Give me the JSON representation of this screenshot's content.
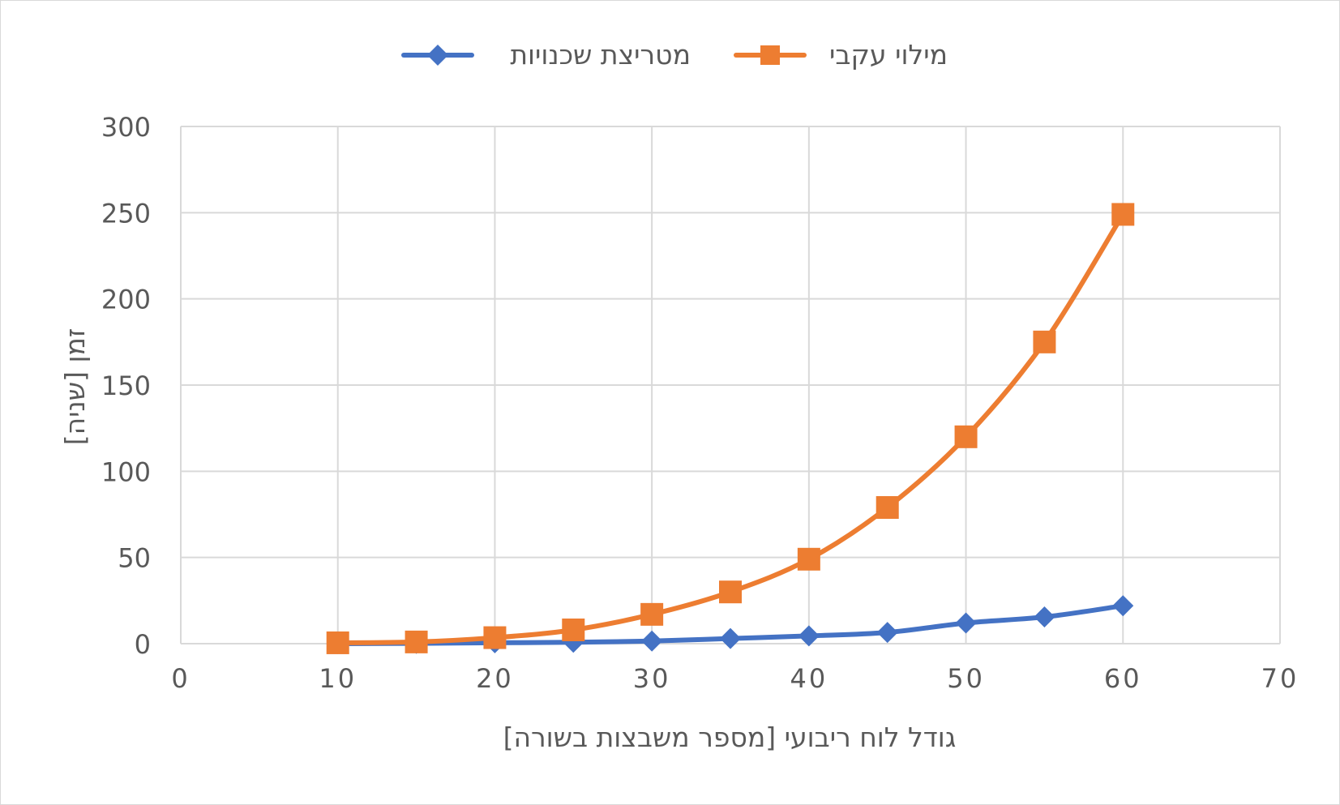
{
  "chart_data": {
    "type": "line",
    "title": "",
    "xlabel": "גודל לוח ריבועי [מספר משבצות בשורה]",
    "ylabel": "זמן [שניה]",
    "xlim": [
      0,
      70
    ],
    "ylim": [
      0,
      300
    ],
    "x_ticks": [
      0,
      10,
      20,
      30,
      40,
      50,
      60,
      70
    ],
    "y_ticks": [
      0,
      50,
      100,
      150,
      200,
      250,
      300
    ],
    "x_tick_labels": [
      "0",
      "10",
      "20",
      "30",
      "40",
      "50",
      "60",
      "70"
    ],
    "y_tick_labels": [
      "0",
      "50",
      "100",
      "150",
      "200",
      "250",
      "300"
    ],
    "grid": true,
    "legend_position": "top",
    "smooth": true,
    "x": [
      10,
      15,
      20,
      25,
      30,
      35,
      40,
      45,
      50,
      55,
      60
    ],
    "series": [
      {
        "name": "מטריצת שכנויות",
        "color": "#4472C4",
        "marker": "diamond",
        "values": [
          0,
          0.2,
          0.5,
          0.8,
          1.5,
          3,
          4.5,
          6.5,
          12,
          15.5,
          22
        ]
      },
      {
        "name": "מילוי עקבי",
        "color": "#ED7D31",
        "marker": "square",
        "values": [
          0.5,
          1,
          3.5,
          8,
          17,
          30,
          49,
          79,
          120,
          175,
          249
        ]
      }
    ]
  }
}
